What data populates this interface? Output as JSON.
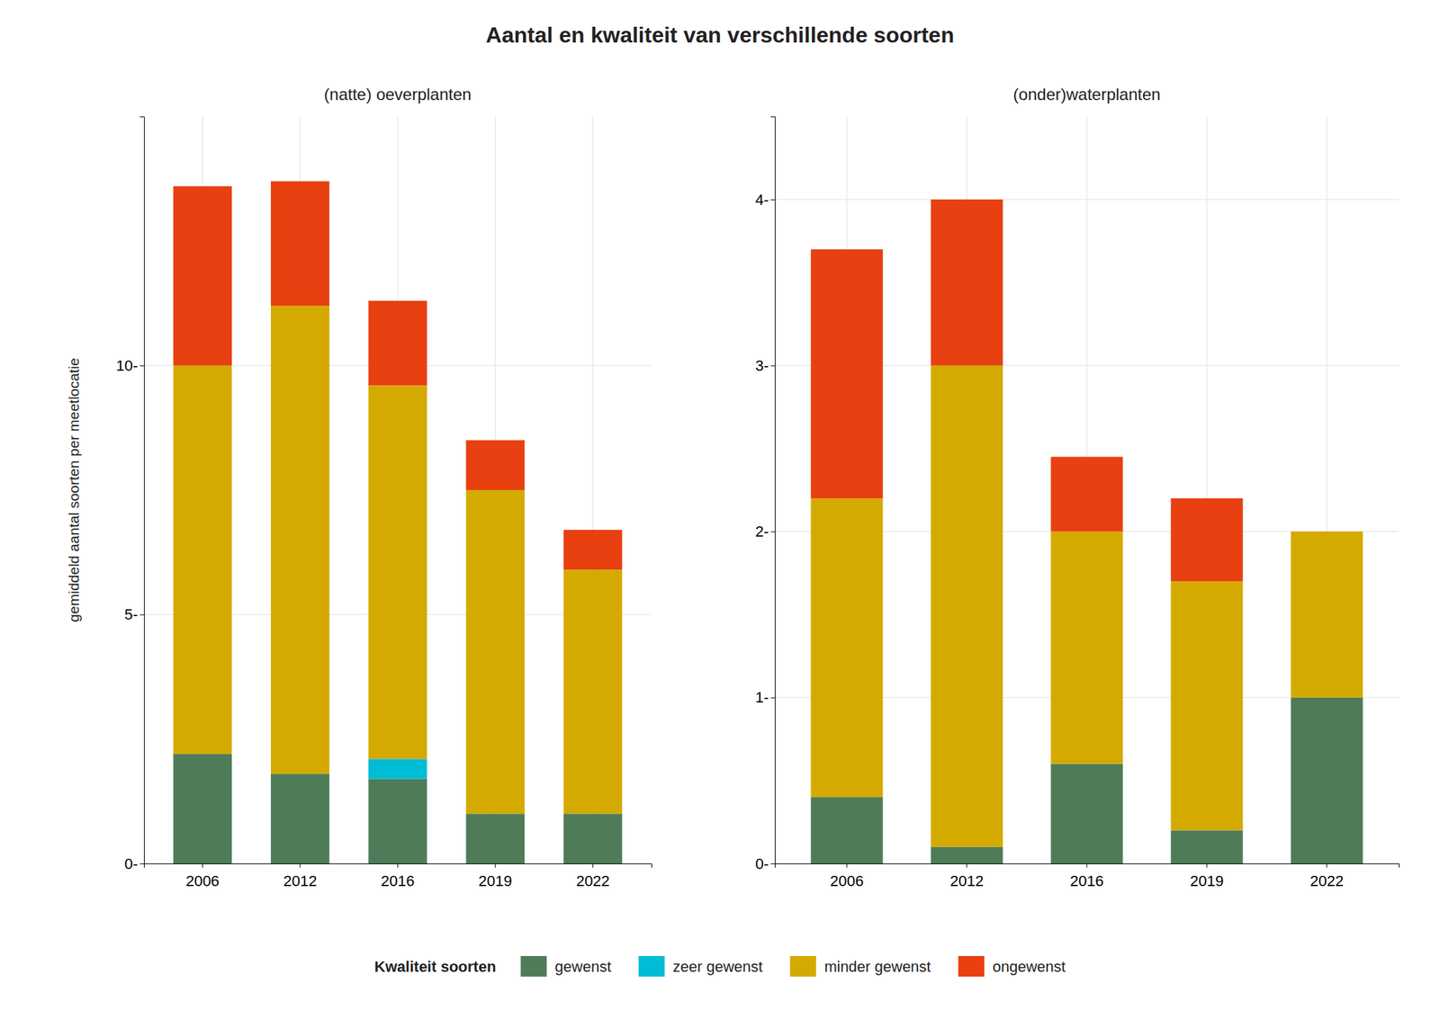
{
  "title": "Aantal en kwaliteit van verschillende soorten",
  "legend": "bottom",
  "legend_title": "Kwaliteit soorten",
  "chart_data": [
    {
      "type": "bar",
      "stacked": true,
      "grid": true,
      "title": "(natte) oeverplanten",
      "ylabel": "gemiddeld aantal soorten per meetlocatie",
      "categories": [
        "2006",
        "2012",
        "2016",
        "2019",
        "2022"
      ],
      "series": [
        {
          "name": "gewenst",
          "color": "#4E7C59",
          "values": [
            2.2,
            1.8,
            1.7,
            1.0,
            1.0
          ]
        },
        {
          "name": "zeer gewenst",
          "color": "#00BCD4",
          "values": [
            0.0,
            0.0,
            0.4,
            0.0,
            0.0
          ]
        },
        {
          "name": "minder gewenst",
          "color": "#D4AA00",
          "values": [
            7.8,
            9.4,
            7.5,
            6.5,
            4.9
          ]
        },
        {
          "name": "ongewenst",
          "color": "#E84010",
          "values": [
            3.6,
            2.5,
            1.7,
            1.0,
            0.8
          ]
        }
      ],
      "ylim": [
        0,
        15
      ],
      "yticks": [
        {
          "value": 0,
          "label": "0-"
        },
        {
          "value": 5,
          "label": "5-"
        },
        {
          "value": 10,
          "label": "10-"
        }
      ]
    },
    {
      "type": "bar",
      "stacked": true,
      "grid": true,
      "title": "(onder)waterplanten",
      "categories": [
        "2006",
        "2012",
        "2016",
        "2019",
        "2022"
      ],
      "series": [
        {
          "name": "gewenst",
          "color": "#4E7C59",
          "values": [
            0.4,
            0.1,
            0.6,
            0.2,
            1.0
          ]
        },
        {
          "name": "zeer gewenst",
          "color": "#00BCD4",
          "values": [
            0.0,
            0.0,
            0.0,
            0.0,
            0.0
          ]
        },
        {
          "name": "minder gewenst",
          "color": "#D4AA00",
          "values": [
            1.8,
            2.9,
            1.4,
            1.5,
            1.0
          ]
        },
        {
          "name": "ongewenst",
          "color": "#E84010",
          "values": [
            1.5,
            1.0,
            0.45,
            0.5,
            0.0
          ]
        }
      ],
      "ylim": [
        0,
        4.5
      ],
      "yticks": [
        {
          "value": 0,
          "label": "0-"
        },
        {
          "value": 1,
          "label": "1-"
        },
        {
          "value": 2,
          "label": "2-"
        },
        {
          "value": 3,
          "label": "3-"
        },
        {
          "value": 4,
          "label": "4-"
        }
      ]
    }
  ]
}
